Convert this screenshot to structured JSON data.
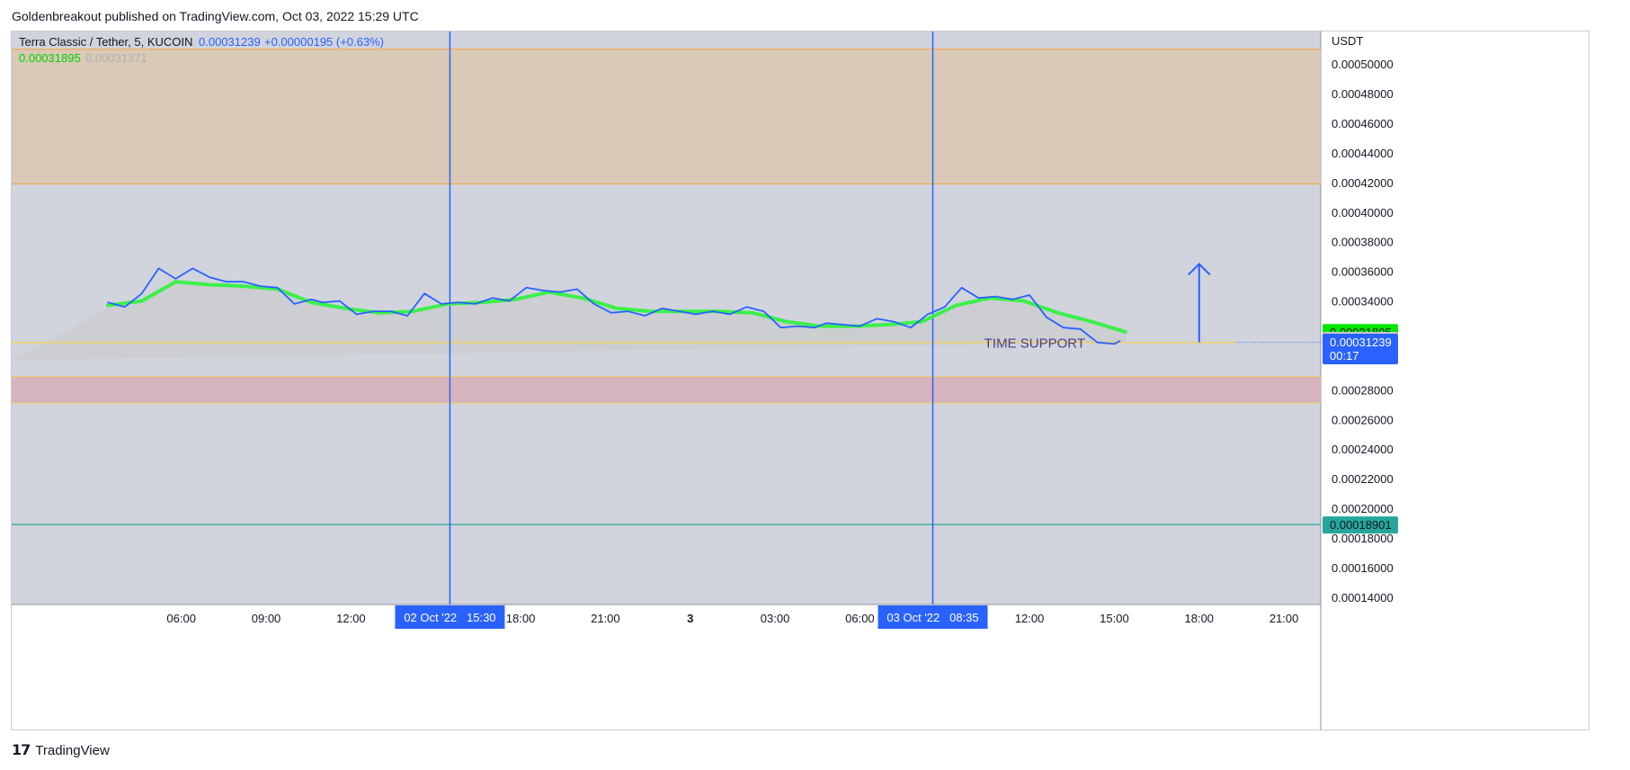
{
  "header": {
    "published_text": "Goldenbreakout published on TradingView.com, Oct 03, 2022 15:29 UTC"
  },
  "footer": {
    "brand": "TradingView",
    "logo_icon": "tradingview-logo-icon"
  },
  "legend": {
    "symbol": "Terra Classic / Tether, 5, KUCOIN",
    "last": "0.00031239",
    "change": "+0.00000195 (+0.63%)",
    "ma_value": "0.00031895",
    "ma2_value": "0.00031371"
  },
  "colors": {
    "panel_bg": "#d1d4dc",
    "resistance_zone": "#d9c9b6",
    "resistance_edge": "#f7a23f",
    "support_zone": "#d6b4bd",
    "support_edge": "#f0d060",
    "price_line": "#2962ff",
    "ma_line": "#3cf04a",
    "teal_line": "#26a69a",
    "time_marker": "#2962ff",
    "label_text": "#4a3f8a"
  },
  "chart_data": {
    "type": "line",
    "title": "Terra Classic / Tether, 5, KUCOIN",
    "ylabel": "USDT",
    "ylim": [
      0.000135,
      0.000522
    ],
    "x_range_hours": [
      0,
      46.3
    ],
    "x_ticks": [
      {
        "label": "06:00",
        "h": 6
      },
      {
        "label": "09:00",
        "h": 9
      },
      {
        "label": "12:00",
        "h": 12
      },
      {
        "label": "18:00",
        "h": 18
      },
      {
        "label": "21:00",
        "h": 21
      },
      {
        "label": "3",
        "h": 24,
        "bold": true
      },
      {
        "label": "03:00",
        "h": 27
      },
      {
        "label": "06:00",
        "h": 30
      },
      {
        "label": "12:00",
        "h": 36
      },
      {
        "label": "15:00",
        "h": 39
      },
      {
        "label": "18:00",
        "h": 42
      },
      {
        "label": "21:00",
        "h": 45
      }
    ],
    "y_ticks": [
      "0.00050000",
      "0.00048000",
      "0.00046000",
      "0.00044000",
      "0.00042000",
      "0.00040000",
      "0.00038000",
      "0.00036000",
      "0.00034000",
      "0.00028000",
      "0.00026000",
      "0.00024000",
      "0.00022000",
      "0.00020000",
      "0.00018000",
      "0.00016000",
      "0.00014000"
    ],
    "series": [
      {
        "name": "Terra Classic / Tether",
        "x": [
          3.4,
          4.0,
          4.6,
          5.2,
          5.8,
          6.4,
          7.0,
          7.6,
          8.2,
          8.8,
          9.4,
          10.0,
          10.6,
          11.0,
          11.6,
          12.2,
          12.8,
          13.4,
          14.0,
          14.6,
          15.2,
          15.8,
          16.4,
          17.0,
          17.6,
          18.2,
          18.8,
          19.4,
          20.0,
          20.6,
          21.2,
          21.8,
          22.4,
          23.0,
          23.6,
          24.2,
          24.8,
          25.4,
          26.0,
          26.6,
          27.2,
          27.8,
          28.4,
          28.8,
          29.4,
          30.0,
          30.6,
          31.2,
          31.8,
          32.4,
          33.0,
          33.6,
          34.2,
          34.8,
          35.4,
          36.0,
          36.6,
          37.2,
          37.8,
          38.4,
          39.0,
          39.2
        ],
        "values": [
          0.000339,
          0.000336,
          0.000345,
          0.000362,
          0.000355,
          0.000362,
          0.000356,
          0.000353,
          0.000353,
          0.00035,
          0.000349,
          0.000338,
          0.000341,
          0.000339,
          0.00034,
          0.000331,
          0.000333,
          0.000333,
          0.00033,
          0.000345,
          0.000338,
          0.000339,
          0.000338,
          0.000342,
          0.00034,
          0.000349,
          0.000347,
          0.000346,
          0.000348,
          0.000338,
          0.000332,
          0.000333,
          0.00033,
          0.000335,
          0.000333,
          0.000331,
          0.000333,
          0.000331,
          0.000336,
          0.000333,
          0.000322,
          0.000323,
          0.000322,
          0.000325,
          0.000324,
          0.000323,
          0.000328,
          0.000326,
          0.000322,
          0.000331,
          0.000336,
          0.000349,
          0.000342,
          0.000343,
          0.000341,
          0.000344,
          0.000329,
          0.000322,
          0.000321,
          0.000312,
          0.000311,
          0.000313
        ]
      },
      {
        "name": "MA",
        "x": [
          3.4,
          4.6,
          5.8,
          7.0,
          8.2,
          9.4,
          10.6,
          11.8,
          13.0,
          14.2,
          15.4,
          16.6,
          17.8,
          19.0,
          20.2,
          21.4,
          22.6,
          23.8,
          25.0,
          26.2,
          27.4,
          28.6,
          29.8,
          31.0,
          32.2,
          33.4,
          34.6,
          35.8,
          37.0,
          38.2,
          39.4
        ],
        "values": [
          0.000337,
          0.00034,
          0.000353,
          0.000351,
          0.00035,
          0.000348,
          0.000339,
          0.000335,
          0.000332,
          0.000333,
          0.000338,
          0.000339,
          0.000341,
          0.000346,
          0.000342,
          0.000335,
          0.000333,
          0.000333,
          0.000333,
          0.000332,
          0.000326,
          0.000323,
          0.000323,
          0.000324,
          0.000326,
          0.000337,
          0.000342,
          0.00034,
          0.000332,
          0.000326,
          0.000319
        ]
      }
    ],
    "zones": [
      {
        "name": "resistance",
        "from": 0.000419,
        "to": 0.00051
      },
      {
        "name": "support",
        "from": 0.000271,
        "to": 0.000289
      }
    ],
    "horizontal_lines": [
      {
        "value": 0.000312,
        "label": "TIME SUPPORT"
      },
      {
        "value": 0.00018901
      }
    ],
    "vertical_markers": [
      {
        "h": 15.5,
        "label": "02 Oct '22   15:30"
      },
      {
        "h": 32.58,
        "label": "03 Oct '22   08:35"
      }
    ],
    "arrow": {
      "at_h": 42.0,
      "from": 0.000312,
      "to": 0.000365
    },
    "price_labels": [
      {
        "value": 0.00031895,
        "text": "0.00031895",
        "color": "#00e600",
        "text_color": "#131722"
      },
      {
        "value": 0.00031371,
        "text": "0.00031371",
        "color": "#c8c8c8",
        "text_color": "#131722"
      },
      {
        "value": 0.00031239,
        "text": "0.00031239",
        "sub": "00:17",
        "color": "#2962ff",
        "text_color": "#ffffff"
      },
      {
        "value": 0.00018901,
        "text": "0.00018901",
        "color": "#26a69a",
        "text_color": "#131722"
      }
    ]
  }
}
